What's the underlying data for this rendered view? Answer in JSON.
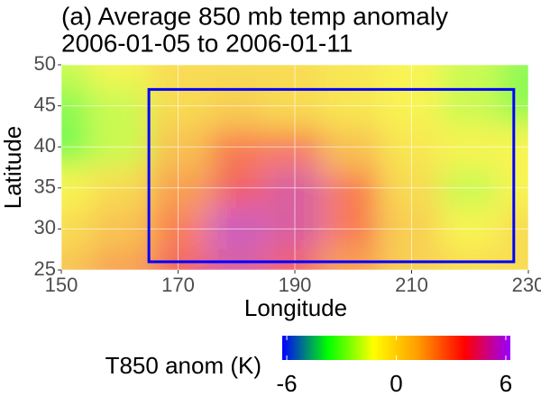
{
  "chart_data": {
    "type": "heatmap",
    "title": "(a) Average 850 mb temp anomaly",
    "subtitle": "2006-01-05 to 2006-01-11",
    "x_label": "Longitude",
    "y_label": "Latitude",
    "x": [
      150,
      160,
      170,
      180,
      190,
      200,
      210,
      220,
      230
    ],
    "y": [
      25,
      30,
      35,
      40,
      45,
      50
    ],
    "values": [
      [
        1,
        2,
        4,
        5,
        4,
        2,
        0.5,
        0,
        0
      ],
      [
        0,
        1,
        3,
        5.5,
        5,
        3,
        0.5,
        -1,
        0
      ],
      [
        -1,
        0,
        2,
        4,
        5,
        3,
        0,
        -2,
        -1
      ],
      [
        -3.5,
        -2,
        1,
        3,
        3,
        1,
        -0.5,
        -1,
        -1
      ],
      [
        -3,
        -2,
        0,
        0.5,
        0,
        -0.5,
        -1,
        -2,
        -3
      ],
      [
        -2,
        -1,
        0,
        0,
        0,
        -0.5,
        -1,
        -2,
        -3
      ]
    ],
    "xlim": [
      150,
      230
    ],
    "ylim": [
      25,
      50
    ],
    "xticks": [
      150,
      170,
      190,
      210,
      230
    ],
    "yticks": [
      25,
      30,
      35,
      40,
      45,
      50
    ],
    "grid": true,
    "box": {
      "x": [
        165,
        227.5
      ],
      "y": [
        26,
        47
      ],
      "color": "#0000ff"
    },
    "colorbar": {
      "title": "T850 anom (K)",
      "lim": [
        -6.25,
        6.25
      ],
      "ticks": [
        -6,
        0,
        6
      ],
      "colors": [
        "#0000ff",
        "#00ff00",
        "#ffff00",
        "#ff9900",
        "#ff0000",
        "#9900ff"
      ]
    }
  }
}
